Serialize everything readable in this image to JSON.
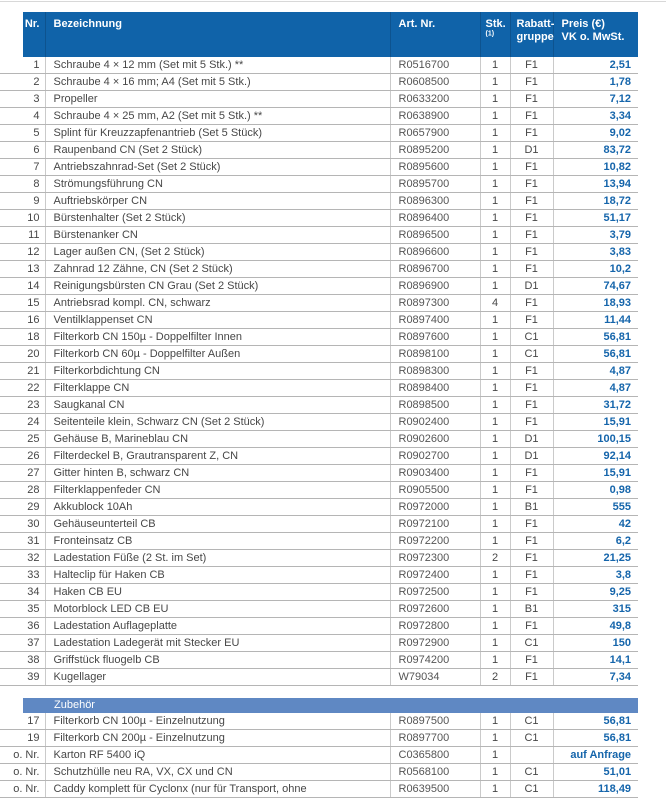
{
  "table": {
    "colors": {
      "header_bg": "#1063a9",
      "section_bg": "#5f88c3",
      "price_text": "#1565ab",
      "body_text": "#474747",
      "row_line": "#b5b5b5",
      "col_line": "#cacaca"
    },
    "headers": {
      "nr": "Nr.",
      "bezeichnung": "Bezeichnung",
      "art_nr": "Art. Nr.",
      "stk": "Stk.",
      "stk_superscript": "(1)",
      "rabatt_line1": "Rabatt-",
      "rabatt_line2": "gruppe",
      "preis_line1": "Preis (€)",
      "preis_line2": "VK o. MwSt."
    },
    "rows": [
      {
        "nr": "1",
        "bezeichnung": "Schraube 4 × 12 mm (Set mit 5 Stk.) **",
        "art_nr": "R0516700",
        "stk": "1",
        "rabatt": "F1",
        "preis": "2,51"
      },
      {
        "nr": "2",
        "bezeichnung": "Schraube 4 × 16 mm; A4 (Set mit 5 Stk.)",
        "art_nr": "R0608500",
        "stk": "1",
        "rabatt": "F1",
        "preis": "1,78"
      },
      {
        "nr": "3",
        "bezeichnung": "Propeller",
        "art_nr": "R0633200",
        "stk": "1",
        "rabatt": "F1",
        "preis": "7,12"
      },
      {
        "nr": "4",
        "bezeichnung": "Schraube 4 × 25 mm, A2 (Set mit 5 Stk.) **",
        "art_nr": "R0638900",
        "stk": "1",
        "rabatt": "F1",
        "preis": "3,34"
      },
      {
        "nr": "5",
        "bezeichnung": "Splint für Kreuzzapfenantrieb (Set 5 Stück)",
        "art_nr": "R0657900",
        "stk": "1",
        "rabatt": "F1",
        "preis": "9,02"
      },
      {
        "nr": "6",
        "bezeichnung": "Raupenband CN (Set 2 Stück)",
        "art_nr": "R0895200",
        "stk": "1",
        "rabatt": "D1",
        "preis": "83,72"
      },
      {
        "nr": "7",
        "bezeichnung": "Antriebszahnrad-Set (Set 2 Stück)",
        "art_nr": "R0895600",
        "stk": "1",
        "rabatt": "F1",
        "preis": "10,82"
      },
      {
        "nr": "8",
        "bezeichnung": "Strömungsführung CN",
        "art_nr": "R0895700",
        "stk": "1",
        "rabatt": "F1",
        "preis": "13,94"
      },
      {
        "nr": "9",
        "bezeichnung": "Auftriebskörper CN",
        "art_nr": "R0896300",
        "stk": "1",
        "rabatt": "F1",
        "preis": "18,72"
      },
      {
        "nr": "10",
        "bezeichnung": "Bürstenhalter (Set 2 Stück)",
        "art_nr": "R0896400",
        "stk": "1",
        "rabatt": "F1",
        "preis": "51,17"
      },
      {
        "nr": "11",
        "bezeichnung": "Bürstenanker CN",
        "art_nr": "R0896500",
        "stk": "1",
        "rabatt": "F1",
        "preis": "3,79"
      },
      {
        "nr": "12",
        "bezeichnung": "Lager außen CN, (Set 2 Stück)",
        "art_nr": "R0896600",
        "stk": "1",
        "rabatt": "F1",
        "preis": "3,83"
      },
      {
        "nr": "13",
        "bezeichnung": "Zahnrad 12 Zähne, CN (Set 2 Stück)",
        "art_nr": "R0896700",
        "stk": "1",
        "rabatt": "F1",
        "preis": "10,2"
      },
      {
        "nr": "14",
        "bezeichnung": "Reinigungsbürsten CN Grau (Set 2 Stück)",
        "art_nr": "R0896900",
        "stk": "1",
        "rabatt": "D1",
        "preis": "74,67"
      },
      {
        "nr": "15",
        "bezeichnung": "Antriebsrad kompl. CN, schwarz",
        "art_nr": "R0897300",
        "stk": "4",
        "rabatt": "F1",
        "preis": "18,93"
      },
      {
        "nr": "16",
        "bezeichnung": "Ventilklappenset CN",
        "art_nr": "R0897400",
        "stk": "1",
        "rabatt": "F1",
        "preis": "11,44"
      },
      {
        "nr": "18",
        "bezeichnung": "Filterkorb CN 150µ - Doppelfilter Innen",
        "art_nr": "R0897600",
        "stk": "1",
        "rabatt": "C1",
        "preis": "56,81"
      },
      {
        "nr": "20",
        "bezeichnung": "Filterkorb CN 60µ - Doppelfilter Außen",
        "art_nr": "R0898100",
        "stk": "1",
        "rabatt": "C1",
        "preis": "56,81"
      },
      {
        "nr": "21",
        "bezeichnung": "Filterkorbdichtung CN",
        "art_nr": "R0898300",
        "stk": "1",
        "rabatt": "F1",
        "preis": "4,87"
      },
      {
        "nr": "22",
        "bezeichnung": "Filterklappe CN",
        "art_nr": "R0898400",
        "stk": "1",
        "rabatt": "F1",
        "preis": "4,87"
      },
      {
        "nr": "23",
        "bezeichnung": "Saugkanal CN",
        "art_nr": "R0898500",
        "stk": "1",
        "rabatt": "F1",
        "preis": "31,72"
      },
      {
        "nr": "24",
        "bezeichnung": "Seitenteile klein, Schwarz CN (Set 2 Stück)",
        "art_nr": "R0902400",
        "stk": "1",
        "rabatt": "F1",
        "preis": "15,91"
      },
      {
        "nr": "25",
        "bezeichnung": "Gehäuse B, Marineblau CN",
        "art_nr": "R0902600",
        "stk": "1",
        "rabatt": "D1",
        "preis": "100,15"
      },
      {
        "nr": "26",
        "bezeichnung": "Filterdeckel B, Grautransparent Z, CN",
        "art_nr": "R0902700",
        "stk": "1",
        "rabatt": "D1",
        "preis": "92,14"
      },
      {
        "nr": "27",
        "bezeichnung": "Gitter hinten B, schwarz CN",
        "art_nr": "R0903400",
        "stk": "1",
        "rabatt": "F1",
        "preis": "15,91"
      },
      {
        "nr": "28",
        "bezeichnung": "Filterklappenfeder CN",
        "art_nr": "R0905500",
        "stk": "1",
        "rabatt": "F1",
        "preis": "0,98"
      },
      {
        "nr": "29",
        "bezeichnung": "Akkublock 10Ah",
        "art_nr": "R0972000",
        "stk": "1",
        "rabatt": "B1",
        "preis": "555"
      },
      {
        "nr": "30",
        "bezeichnung": "Gehäuseunterteil CB",
        "art_nr": "R0972100",
        "stk": "1",
        "rabatt": "F1",
        "preis": "42"
      },
      {
        "nr": "31",
        "bezeichnung": "Fronteinsatz CB",
        "art_nr": "R0972200",
        "stk": "1",
        "rabatt": "F1",
        "preis": "6,2"
      },
      {
        "nr": "32",
        "bezeichnung": "Ladestation Füße (2 St. im Set)",
        "art_nr": "R0972300",
        "stk": "2",
        "rabatt": "F1",
        "preis": "21,25"
      },
      {
        "nr": "33",
        "bezeichnung": "Halteclip für Haken CB",
        "art_nr": "R0972400",
        "stk": "1",
        "rabatt": "F1",
        "preis": "3,8"
      },
      {
        "nr": "34",
        "bezeichnung": "Haken CB EU",
        "art_nr": "R0972500",
        "stk": "1",
        "rabatt": "F1",
        "preis": "9,25"
      },
      {
        "nr": "35",
        "bezeichnung": "Motorblock LED CB EU",
        "art_nr": "R0972600",
        "stk": "1",
        "rabatt": "B1",
        "preis": "315"
      },
      {
        "nr": "36",
        "bezeichnung": "Ladestation Auflageplatte",
        "art_nr": "R0972800",
        "stk": "1",
        "rabatt": "F1",
        "preis": "49,8"
      },
      {
        "nr": "37",
        "bezeichnung": "Ladestation Ladegerät mit Stecker EU",
        "art_nr": "R0972900",
        "stk": "1",
        "rabatt": "C1",
        "preis": "150"
      },
      {
        "nr": "38",
        "bezeichnung": "Griffstück fluogelb CB",
        "art_nr": "R0974200",
        "stk": "1",
        "rabatt": "F1",
        "preis": "14,1"
      },
      {
        "nr": "39",
        "bezeichnung": "Kugellager",
        "art_nr": "W79034",
        "stk": "2",
        "rabatt": "F1",
        "preis": "7,34"
      }
    ],
    "zubehoer": {
      "title": "Zubehör",
      "rows": [
        {
          "nr": "17",
          "bezeichnung": "Filterkorb CN 100µ - Einzelnutzung",
          "art_nr": "R0897500",
          "stk": "1",
          "rabatt": "C1",
          "preis": "56,81"
        },
        {
          "nr": "19",
          "bezeichnung": "Filterkorb CN 200µ - Einzelnutzung",
          "art_nr": "R0897700",
          "stk": "1",
          "rabatt": "C1",
          "preis": "56,81"
        },
        {
          "nr": "o. Nr.",
          "bezeichnung": "Karton RF 5400 iQ",
          "art_nr": "C0365800",
          "stk": "1",
          "rabatt": "",
          "preis": "auf Anfrage"
        },
        {
          "nr": "o. Nr.",
          "bezeichnung": "Schutzhülle neu RA, VX, CX und CN",
          "art_nr": "R0568100",
          "stk": "1",
          "rabatt": "C1",
          "preis": "51,01"
        },
        {
          "nr": "o. Nr.",
          "bezeichnung": "Caddy komplett für Cyclonx (nur für Transport, ohne",
          "art_nr": "R0639500",
          "stk": "1",
          "rabatt": "C1",
          "preis": "118,49"
        }
      ]
    }
  }
}
